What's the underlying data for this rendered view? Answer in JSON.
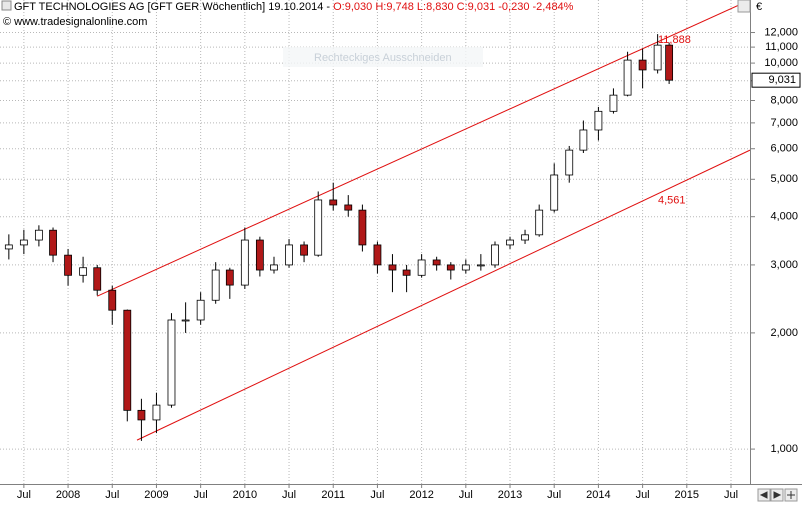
{
  "chart_data": {
    "type": "candlestick",
    "title": "GFT TECHNOLOGIES AG [GFT GER  Wöchentlich] 19.10.2014 -",
    "quote": "O:9,030 H:9,748 L:8,830 C:9,031 -0,230 -2,484%",
    "source": "© www.tradesignalonline.com",
    "currency": "€",
    "overlay": "Rechteckiges Ausschneiden",
    "log_scale": true,
    "grid": true,
    "up_color": "#ffffff",
    "down_color": "#b01818",
    "line_color": "#e01010",
    "x": [
      2007.33,
      2007.5,
      2007.67,
      2007.83,
      2008.0,
      2008.17,
      2008.33,
      2008.5,
      2008.67,
      2008.83,
      2009.0,
      2009.17,
      2009.33,
      2009.5,
      2009.67,
      2009.83,
      2010.0,
      2010.17,
      2010.33,
      2010.5,
      2010.67,
      2010.83,
      2011.0,
      2011.17,
      2011.33,
      2011.5,
      2011.67,
      2011.83,
      2012.0,
      2012.17,
      2012.33,
      2012.5,
      2012.67,
      2012.83,
      2013.0,
      2013.17,
      2013.33,
      2013.5,
      2013.67,
      2013.83,
      2014.0,
      2014.17,
      2014.33,
      2014.5,
      2014.67,
      2014.8
    ],
    "open": [
      3300,
      3380,
      3480,
      3690,
      3180,
      2820,
      2950,
      2580,
      2290,
      1260,
      1190,
      1300,
      2160,
      2160,
      2430,
      2910,
      2660,
      3480,
      2910,
      3000,
      3380,
      3180,
      4420,
      4290,
      4160,
      3380,
      3000,
      2910,
      2820,
      3090,
      3000,
      2910,
      3000,
      3000,
      3380,
      3480,
      3590,
      4160,
      5130,
      5950,
      6710,
      7500,
      8260,
      10180,
      9600,
      11130
    ],
    "high": [
      3600,
      3700,
      3800,
      3750,
      3300,
      3150,
      3000,
      2650,
      2300,
      1350,
      1400,
      2250,
      2400,
      2550,
      3050,
      2950,
      3750,
      3550,
      3150,
      3500,
      3450,
      4650,
      4900,
      4550,
      4300,
      3450,
      3200,
      3000,
      3200,
      3150,
      3050,
      3100,
      3200,
      3450,
      3550,
      3700,
      4300,
      5500,
      6100,
      7100,
      7700,
      8600,
      10700,
      10900,
      11888,
      11300
    ],
    "low": [
      3100,
      3200,
      3350,
      3050,
      2650,
      2700,
      2500,
      2100,
      1180,
      1050,
      1100,
      1280,
      2000,
      2100,
      2380,
      2450,
      2600,
      2800,
      2850,
      2950,
      3050,
      3150,
      4150,
      4000,
      3250,
      2850,
      2550,
      2550,
      2780,
      2900,
      2750,
      2850,
      2900,
      2950,
      3300,
      3400,
      3550,
      4100,
      4900,
      5850,
      6300,
      7400,
      8200,
      8600,
      9400,
      8830
    ],
    "close": [
      3380,
      3480,
      3690,
      3180,
      2820,
      2950,
      2580,
      2290,
      1260,
      1190,
      1300,
      2160,
      2160,
      2430,
      2910,
      2660,
      3480,
      2910,
      3000,
      3380,
      3180,
      4420,
      4290,
      4160,
      3380,
      3000,
      2910,
      2820,
      3090,
      3000,
      2910,
      3000,
      3000,
      3380,
      3480,
      3590,
      4160,
      5130,
      5950,
      6710,
      7500,
      8260,
      10180,
      9600,
      11130,
      9031
    ],
    "trendlines": [
      {
        "x": [
          2008.33,
          2015.715
        ],
        "values": [
          2490,
          14570
        ]
      },
      {
        "x": [
          2008.78,
          2015.715
        ],
        "values": [
          1055,
          5950
        ]
      }
    ],
    "annotations": [
      {
        "value": 11888,
        "label": "11,888"
      },
      {
        "value": 4561,
        "label": "4,561"
      }
    ],
    "last_price": {
      "value": 9031,
      "label": "9,031"
    },
    "xlim": [
      2007.23,
      2015.715
    ],
    "ylim": [
      812,
      14570
    ],
    "xticks": [
      {
        "value": 2007.5,
        "label": "Jul"
      },
      2008,
      {
        "value": 2008.5,
        "label": "Jul"
      },
      2009,
      {
        "value": 2009.5,
        "label": "Jul"
      },
      2010,
      {
        "value": 2010.5,
        "label": "Jul"
      },
      2011,
      {
        "value": 2011.5,
        "label": "Jul"
      },
      2012,
      {
        "value": 2012.5,
        "label": "Jul"
      },
      2013,
      {
        "value": 2013.5,
        "label": "Jul"
      },
      2014,
      {
        "value": 2014.5,
        "label": "Jul"
      },
      2015,
      {
        "value": 2015.5,
        "label": "Jul"
      }
    ],
    "yticks": [
      {
        "value": 1000,
        "label": "1,000"
      },
      {
        "value": 2000,
        "label": "2,000"
      },
      {
        "value": 3000,
        "label": "3,000"
      },
      {
        "value": 4000,
        "label": "4,000"
      },
      {
        "value": 5000,
        "label": "5,000"
      },
      {
        "value": 6000,
        "label": "6,000"
      },
      {
        "value": 7000,
        "label": "7,000"
      },
      {
        "value": 8000,
        "label": "8,000"
      },
      {
        "value": 9000,
        "label": "9,000"
      },
      {
        "value": 10000,
        "label": "10,000"
      },
      {
        "value": 11000,
        "label": "11,000"
      },
      {
        "value": 12000,
        "label": "12,000"
      }
    ]
  }
}
